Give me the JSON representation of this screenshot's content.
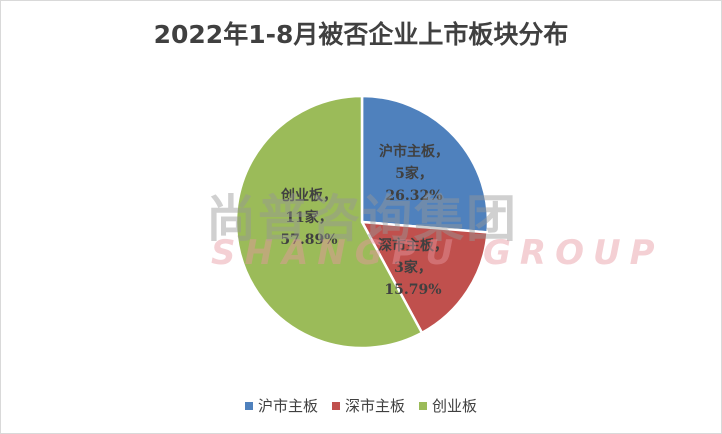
{
  "chart_data": {
    "type": "pie",
    "title": "2022年1-8月被否企业上市板块分布",
    "slices": [
      {
        "name": "沪市主板",
        "count": 5,
        "count_label": "5家",
        "percent": 26.32,
        "color": "#4F81BD"
      },
      {
        "name": "深市主板",
        "count": 3,
        "count_label": "3家",
        "percent": 15.79,
        "color": "#C0504D"
      },
      {
        "name": "创业板",
        "count": 11,
        "count_label": "11家",
        "percent": 57.89,
        "color": "#9BBB59"
      }
    ],
    "start_angle": "top, clockwise",
    "legend_position": "bottom"
  },
  "watermark": {
    "cn": "尚普咨询集团",
    "en": "SHANGPU GROUP"
  }
}
